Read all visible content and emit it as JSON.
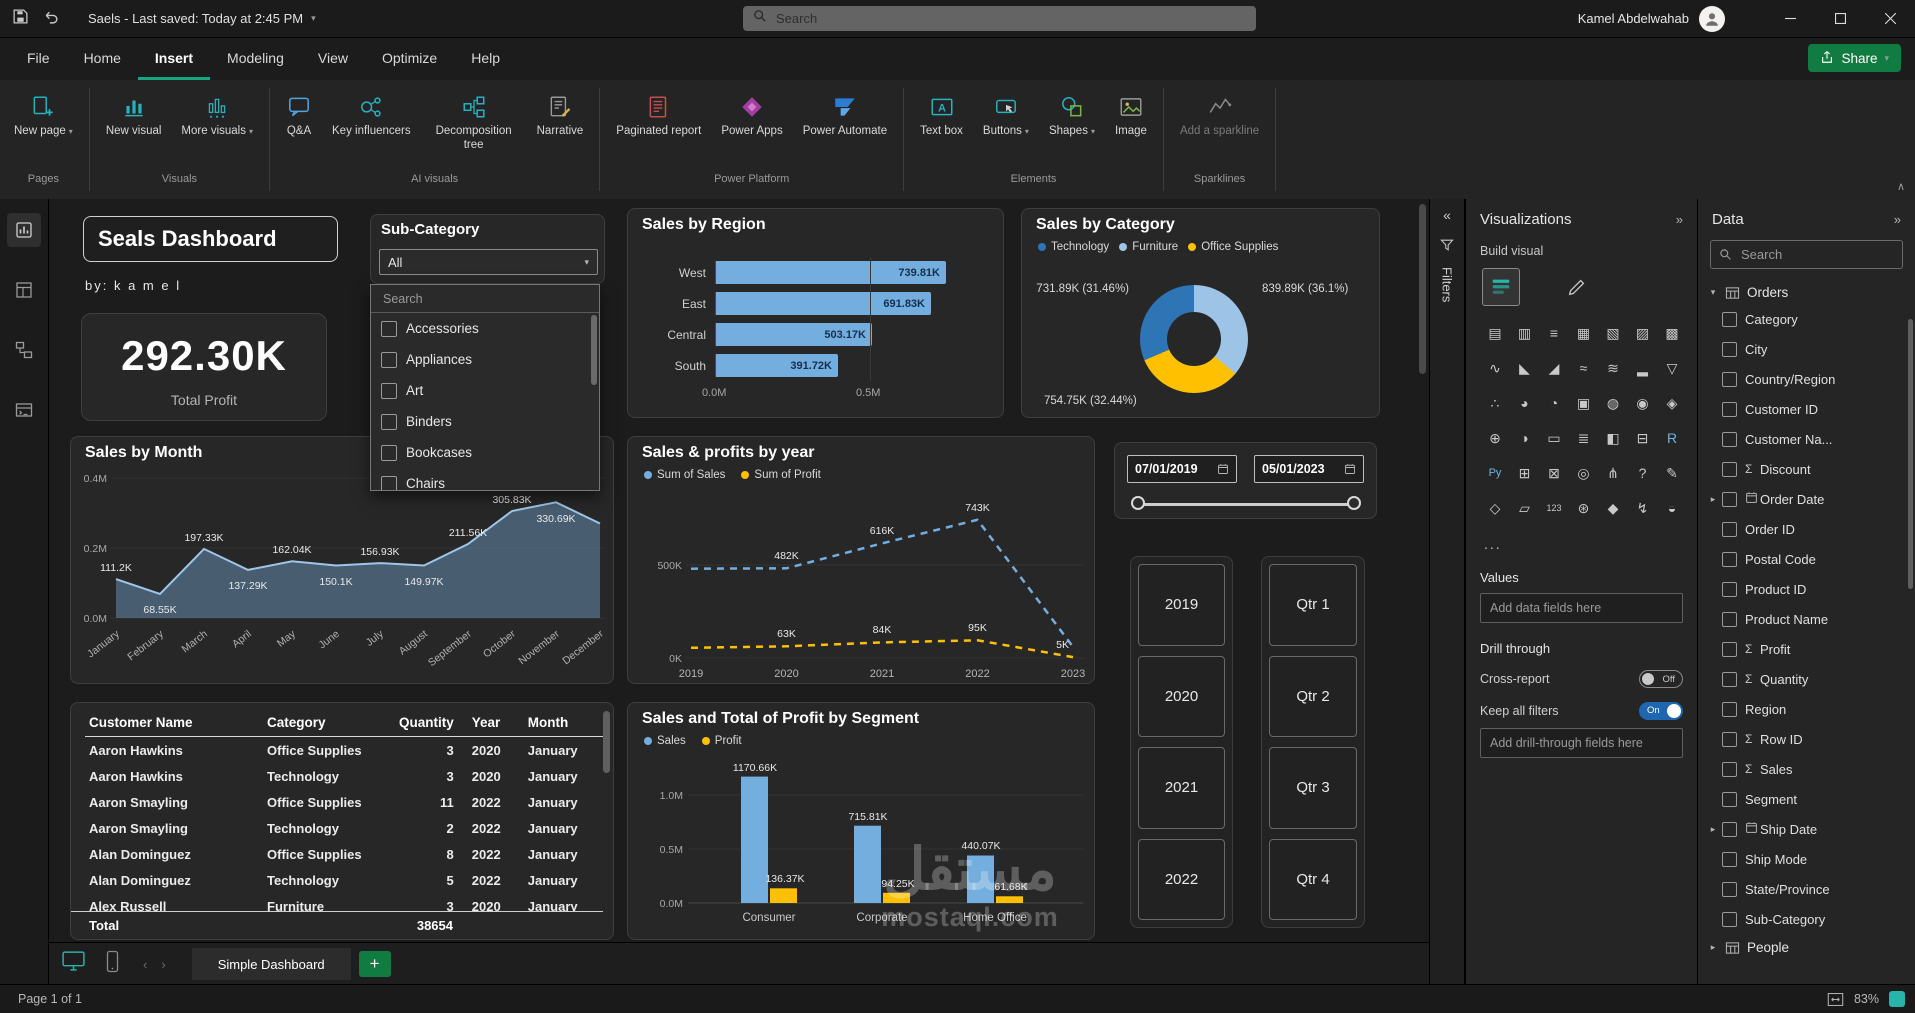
{
  "title_bar": {
    "document_title": "Saels - Last saved: Today at 2:45 PM",
    "search_placeholder": "Search",
    "user_name": "Kamel Abdelwahab"
  },
  "menu": {
    "items": [
      "File",
      "Home",
      "Insert",
      "Modeling",
      "View",
      "Optimize",
      "Help"
    ],
    "active": "Insert",
    "share_label": "Share"
  },
  "ribbon": {
    "groups": [
      {
        "label": "Pages",
        "items": [
          {
            "label": "New page",
            "icon": "new-page-icon",
            "caret": true
          }
        ]
      },
      {
        "label": "Visuals",
        "items": [
          {
            "label": "New visual",
            "icon": "new-visual-icon"
          },
          {
            "label": "More visuals",
            "icon": "more-visuals-icon",
            "caret": true
          }
        ]
      },
      {
        "label": "AI visuals",
        "items": [
          {
            "label": "Q&A",
            "icon": "qa-icon"
          },
          {
            "label": "Key influencers",
            "icon": "key-influencers-icon"
          },
          {
            "label": "Decomposition tree",
            "icon": "decomposition-tree-icon"
          },
          {
            "label": "Narrative",
            "icon": "narrative-icon"
          }
        ]
      },
      {
        "label": "Power Platform",
        "items": [
          {
            "label": "Paginated report",
            "icon": "paginated-report-icon"
          },
          {
            "label": "Power Apps",
            "icon": "power-apps-icon"
          },
          {
            "label": "Power Automate",
            "icon": "power-automate-icon"
          }
        ]
      },
      {
        "label": "Elements",
        "items": [
          {
            "label": "Text box",
            "icon": "text-box-icon"
          },
          {
            "label": "Buttons",
            "icon": "buttons-icon",
            "caret": true
          },
          {
            "label": "Shapes",
            "icon": "shapes-icon",
            "caret": true
          },
          {
            "label": "Image",
            "icon": "image-icon"
          }
        ]
      },
      {
        "label": "Sparklines",
        "items": [
          {
            "label": "Add a sparkline",
            "icon": "sparkline-icon",
            "disabled": true
          }
        ]
      }
    ]
  },
  "dashboard": {
    "title": "Seals Dashboard",
    "byline": "by: k a m e l",
    "kpi": {
      "value": "292.30K",
      "label": "Total Profit"
    },
    "subcategory_slicer": {
      "title": "Sub-Category",
      "selected": "All",
      "search_placeholder": "Search",
      "options": [
        "Accessories",
        "Appliances",
        "Art",
        "Binders",
        "Bookcases",
        "Chairs"
      ]
    },
    "date_slicer": {
      "start": "07/01/2019",
      "end": "05/01/2023"
    },
    "year_buttons": [
      "2019",
      "2020",
      "2021",
      "2022"
    ],
    "quarter_buttons": [
      "Qtr 1",
      "Qtr 2",
      "Qtr 3",
      "Qtr 4"
    ],
    "table": {
      "headers": [
        "Customer Name",
        "Category",
        "Quantity",
        "Year",
        "Month"
      ],
      "rows": [
        [
          "Aaron Hawkins",
          "Office Supplies",
          "3",
          "2020",
          "January"
        ],
        [
          "Aaron Hawkins",
          "Technology",
          "3",
          "2020",
          "January"
        ],
        [
          "Aaron Smayling",
          "Office Supplies",
          "11",
          "2022",
          "January"
        ],
        [
          "Aaron Smayling",
          "Technology",
          "2",
          "2022",
          "January"
        ],
        [
          "Alan Dominguez",
          "Office Supplies",
          "8",
          "2022",
          "January"
        ],
        [
          "Alan Dominguez",
          "Technology",
          "5",
          "2022",
          "January"
        ],
        [
          "Alex Russell",
          "Furniture",
          "3",
          "2020",
          "January"
        ]
      ],
      "total_label": "Total",
      "total_quantity": "38654"
    },
    "watermark": {
      "line1": "مستقل",
      "line2": "mostaql.com"
    }
  },
  "chart_data": [
    {
      "type": "bar",
      "orientation": "horizontal",
      "title": "Sales by Region",
      "categories": [
        "West",
        "East",
        "Central",
        "South"
      ],
      "values": [
        739.81,
        691.83,
        503.17,
        391.72
      ],
      "data_labels": [
        "739.81K",
        "691.83K",
        "503.17K",
        "391.72K"
      ],
      "x_ticks": [
        "0.0M",
        "0.5M"
      ],
      "xlim": [
        0,
        780
      ],
      "unit": "K",
      "bar_color": "#74aede"
    },
    {
      "type": "donut",
      "title": "Sales by Category",
      "legend": [
        "Technology",
        "Furniture",
        "Office Supplies"
      ],
      "slices": [
        {
          "name": "Technology",
          "label": "731.89K (31.46%)",
          "pct": 31.46,
          "color": "#2e75b6"
        },
        {
          "name": "Furniture",
          "label": "839.89K (36.1%)",
          "pct": 36.1,
          "color": "#9dc3e6"
        },
        {
          "name": "Office Supplies",
          "label": "754.75K (32.44%)",
          "pct": 32.44,
          "color": "#ffc000"
        }
      ]
    },
    {
      "type": "area",
      "title": "Sales by Month",
      "categories": [
        "January",
        "February",
        "March",
        "April",
        "May",
        "June",
        "July",
        "August",
        "September",
        "October",
        "November",
        "December"
      ],
      "values": [
        111.2,
        68.55,
        197.33,
        137.29,
        162.04,
        150.1,
        156.93,
        149.97,
        211.56,
        305.83,
        330.69,
        270
      ],
      "labels": [
        "111.2K",
        "68.55K",
        "197.33K",
        "137.29K",
        "162.04K",
        "150.1K",
        "156.93K",
        "149.97K",
        "211.56K",
        "305.83K",
        "330.69K",
        ""
      ],
      "y_ticks": [
        "0.0M",
        "0.2M",
        "0.4M"
      ],
      "ylim": [
        0,
        400
      ],
      "line_color": "#9fc5e8",
      "fill_color": "rgba(116,160,204,0.45)"
    },
    {
      "type": "line",
      "title": "Sales & profits by year",
      "dashed": true,
      "x": [
        "2019",
        "2020",
        "2021",
        "2022",
        "2023"
      ],
      "series": [
        {
          "name": "Sum of Sales",
          "color": "#74aede",
          "values": [
            480,
            482,
            616,
            743,
            60
          ],
          "labels": [
            "",
            "482K",
            "616K",
            "743K",
            ""
          ]
        },
        {
          "name": "Sum of Profit",
          "color": "#ffc000",
          "values": [
            55,
            63,
            84,
            95,
            5
          ],
          "labels": [
            "",
            "63K",
            "84K",
            "95K",
            "5K"
          ]
        }
      ],
      "y_ticks": [
        "0K",
        "500K"
      ],
      "ylim": [
        0,
        500
      ]
    },
    {
      "type": "bar",
      "orientation": "vertical",
      "title": "Sales and Total of Profit by Segment",
      "categories": [
        "Consumer",
        "Corporate",
        "Home Office"
      ],
      "series": [
        {
          "name": "Sales",
          "color": "#74aede",
          "values": [
            1170.66,
            715.81,
            440.07
          ],
          "labels": [
            "1170.66K",
            "715.81K",
            "440.07K"
          ]
        },
        {
          "name": "Profit",
          "color": "#ffc000",
          "values": [
            136.37,
            94.25,
            61.68
          ],
          "labels": [
            "136.37K",
            "94.25K",
            "61.68K"
          ]
        }
      ],
      "y_ticks": [
        "0.0M",
        "0.5M",
        "1.0M"
      ],
      "ylim": [
        0,
        1300
      ]
    }
  ],
  "filters_pane": {
    "label": "Filters"
  },
  "visualizations_pane": {
    "title": "Visualizations",
    "build_label": "Build visual",
    "more_label": "...",
    "values_label": "Values",
    "values_placeholder": "Add data fields here",
    "drill_label": "Drill through",
    "cross_report_label": "Cross-report",
    "cross_report_state": "Off",
    "keep_filters_label": "Keep all filters",
    "keep_filters_state": "On",
    "drill_placeholder": "Add drill-through fields here",
    "icons": [
      {
        "name": "stacked-bar-chart",
        "glyph": "▤"
      },
      {
        "name": "stacked-column-chart",
        "glyph": "▥"
      },
      {
        "name": "clustered-bar-chart",
        "glyph": "≡"
      },
      {
        "name": "clustered-column-chart",
        "glyph": "▦"
      },
      {
        "name": "100-stacked-bar-chart",
        "glyph": "▧"
      },
      {
        "name": "100-stacked-column-chart",
        "glyph": "▨"
      },
      {
        "name": "ribbon-chart",
        "glyph": "▩"
      },
      {
        "name": "line-chart",
        "glyph": "∿"
      },
      {
        "name": "area-chart",
        "glyph": "◣"
      },
      {
        "name": "stacked-area-chart",
        "glyph": "◢"
      },
      {
        "name": "line-and-stacked-column-chart",
        "glyph": "≈"
      },
      {
        "name": "line-and-clustered-column-chart",
        "glyph": "≋"
      },
      {
        "name": "waterfall-chart",
        "glyph": "▂"
      },
      {
        "name": "funnel-chart",
        "glyph": "▽"
      },
      {
        "name": "scatter-chart",
        "glyph": "∴"
      },
      {
        "name": "pie-chart",
        "glyph": "◕"
      },
      {
        "name": "donut-chart",
        "glyph": "◔"
      },
      {
        "name": "treemap",
        "glyph": "▣"
      },
      {
        "name": "map",
        "glyph": "◍"
      },
      {
        "name": "filled-map",
        "glyph": "◉"
      },
      {
        "name": "shape-map",
        "glyph": "◈"
      },
      {
        "name": "azure-map",
        "glyph": "⊕"
      },
      {
        "name": "gauge",
        "glyph": "◑"
      },
      {
        "name": "card",
        "glyph": "▭"
      },
      {
        "name": "multi-row-card",
        "glyph": "≣"
      },
      {
        "name": "kpi",
        "glyph": "◧"
      },
      {
        "name": "slicer",
        "glyph": "⊟"
      },
      {
        "name": "r-script-visual",
        "glyph": "R",
        "color": "#6db3e8"
      },
      {
        "name": "python-visual",
        "glyph": "Py",
        "color": "#6db3e8"
      },
      {
        "name": "table",
        "glyph": "⊞"
      },
      {
        "name": "matrix",
        "glyph": "⊠"
      },
      {
        "name": "key-influencers",
        "glyph": "◎"
      },
      {
        "name": "decomposition-tree",
        "glyph": "⋔"
      },
      {
        "name": "qa-visual",
        "glyph": "?"
      },
      {
        "name": "narrative",
        "glyph": "✎"
      },
      {
        "name": "goals",
        "glyph": "◇"
      },
      {
        "name": "paginated-report",
        "glyph": "▱"
      },
      {
        "name": "numeric-card",
        "glyph": "123"
      },
      {
        "name": "arcgis-map",
        "glyph": "⊛"
      },
      {
        "name": "power-apps-visual",
        "glyph": "◆"
      },
      {
        "name": "power-automate-visual",
        "glyph": "↯"
      },
      {
        "name": "metrics",
        "glyph": "◒"
      }
    ]
  },
  "data_pane": {
    "title": "Data",
    "search_placeholder": "Search",
    "tables": [
      {
        "name": "Orders",
        "expanded": true,
        "fields": [
          {
            "name": "Category",
            "kind": "text"
          },
          {
            "name": "City",
            "kind": "text"
          },
          {
            "name": "Country/Region",
            "kind": "text"
          },
          {
            "name": "Customer ID",
            "kind": "text"
          },
          {
            "name": "Customer Na...",
            "kind": "text"
          },
          {
            "name": "Discount",
            "kind": "sum"
          },
          {
            "name": "Order Date",
            "kind": "date"
          },
          {
            "name": "Order ID",
            "kind": "text"
          },
          {
            "name": "Postal Code",
            "kind": "text"
          },
          {
            "name": "Product ID",
            "kind": "text"
          },
          {
            "name": "Product Name",
            "kind": "text"
          },
          {
            "name": "Profit",
            "kind": "sum"
          },
          {
            "name": "Quantity",
            "kind": "sum"
          },
          {
            "name": "Region",
            "kind": "text"
          },
          {
            "name": "Row ID",
            "kind": "sum"
          },
          {
            "name": "Sales",
            "kind": "sum"
          },
          {
            "name": "Segment",
            "kind": "text"
          },
          {
            "name": "Ship Date",
            "kind": "date"
          },
          {
            "name": "Ship Mode",
            "kind": "text"
          },
          {
            "name": "State/Province",
            "kind": "text"
          },
          {
            "name": "Sub-Category",
            "kind": "text"
          }
        ]
      },
      {
        "name": "People",
        "expanded": false,
        "fields": []
      }
    ]
  },
  "footer": {
    "page_tab": "Simple Dashboard",
    "page_status": "Page 1 of 1",
    "zoom": "83%"
  },
  "colors": {
    "accent_blue": "#74aede",
    "accent_yellow": "#ffc000",
    "share_green": "#107c41",
    "tab_underline": "#15a682"
  }
}
